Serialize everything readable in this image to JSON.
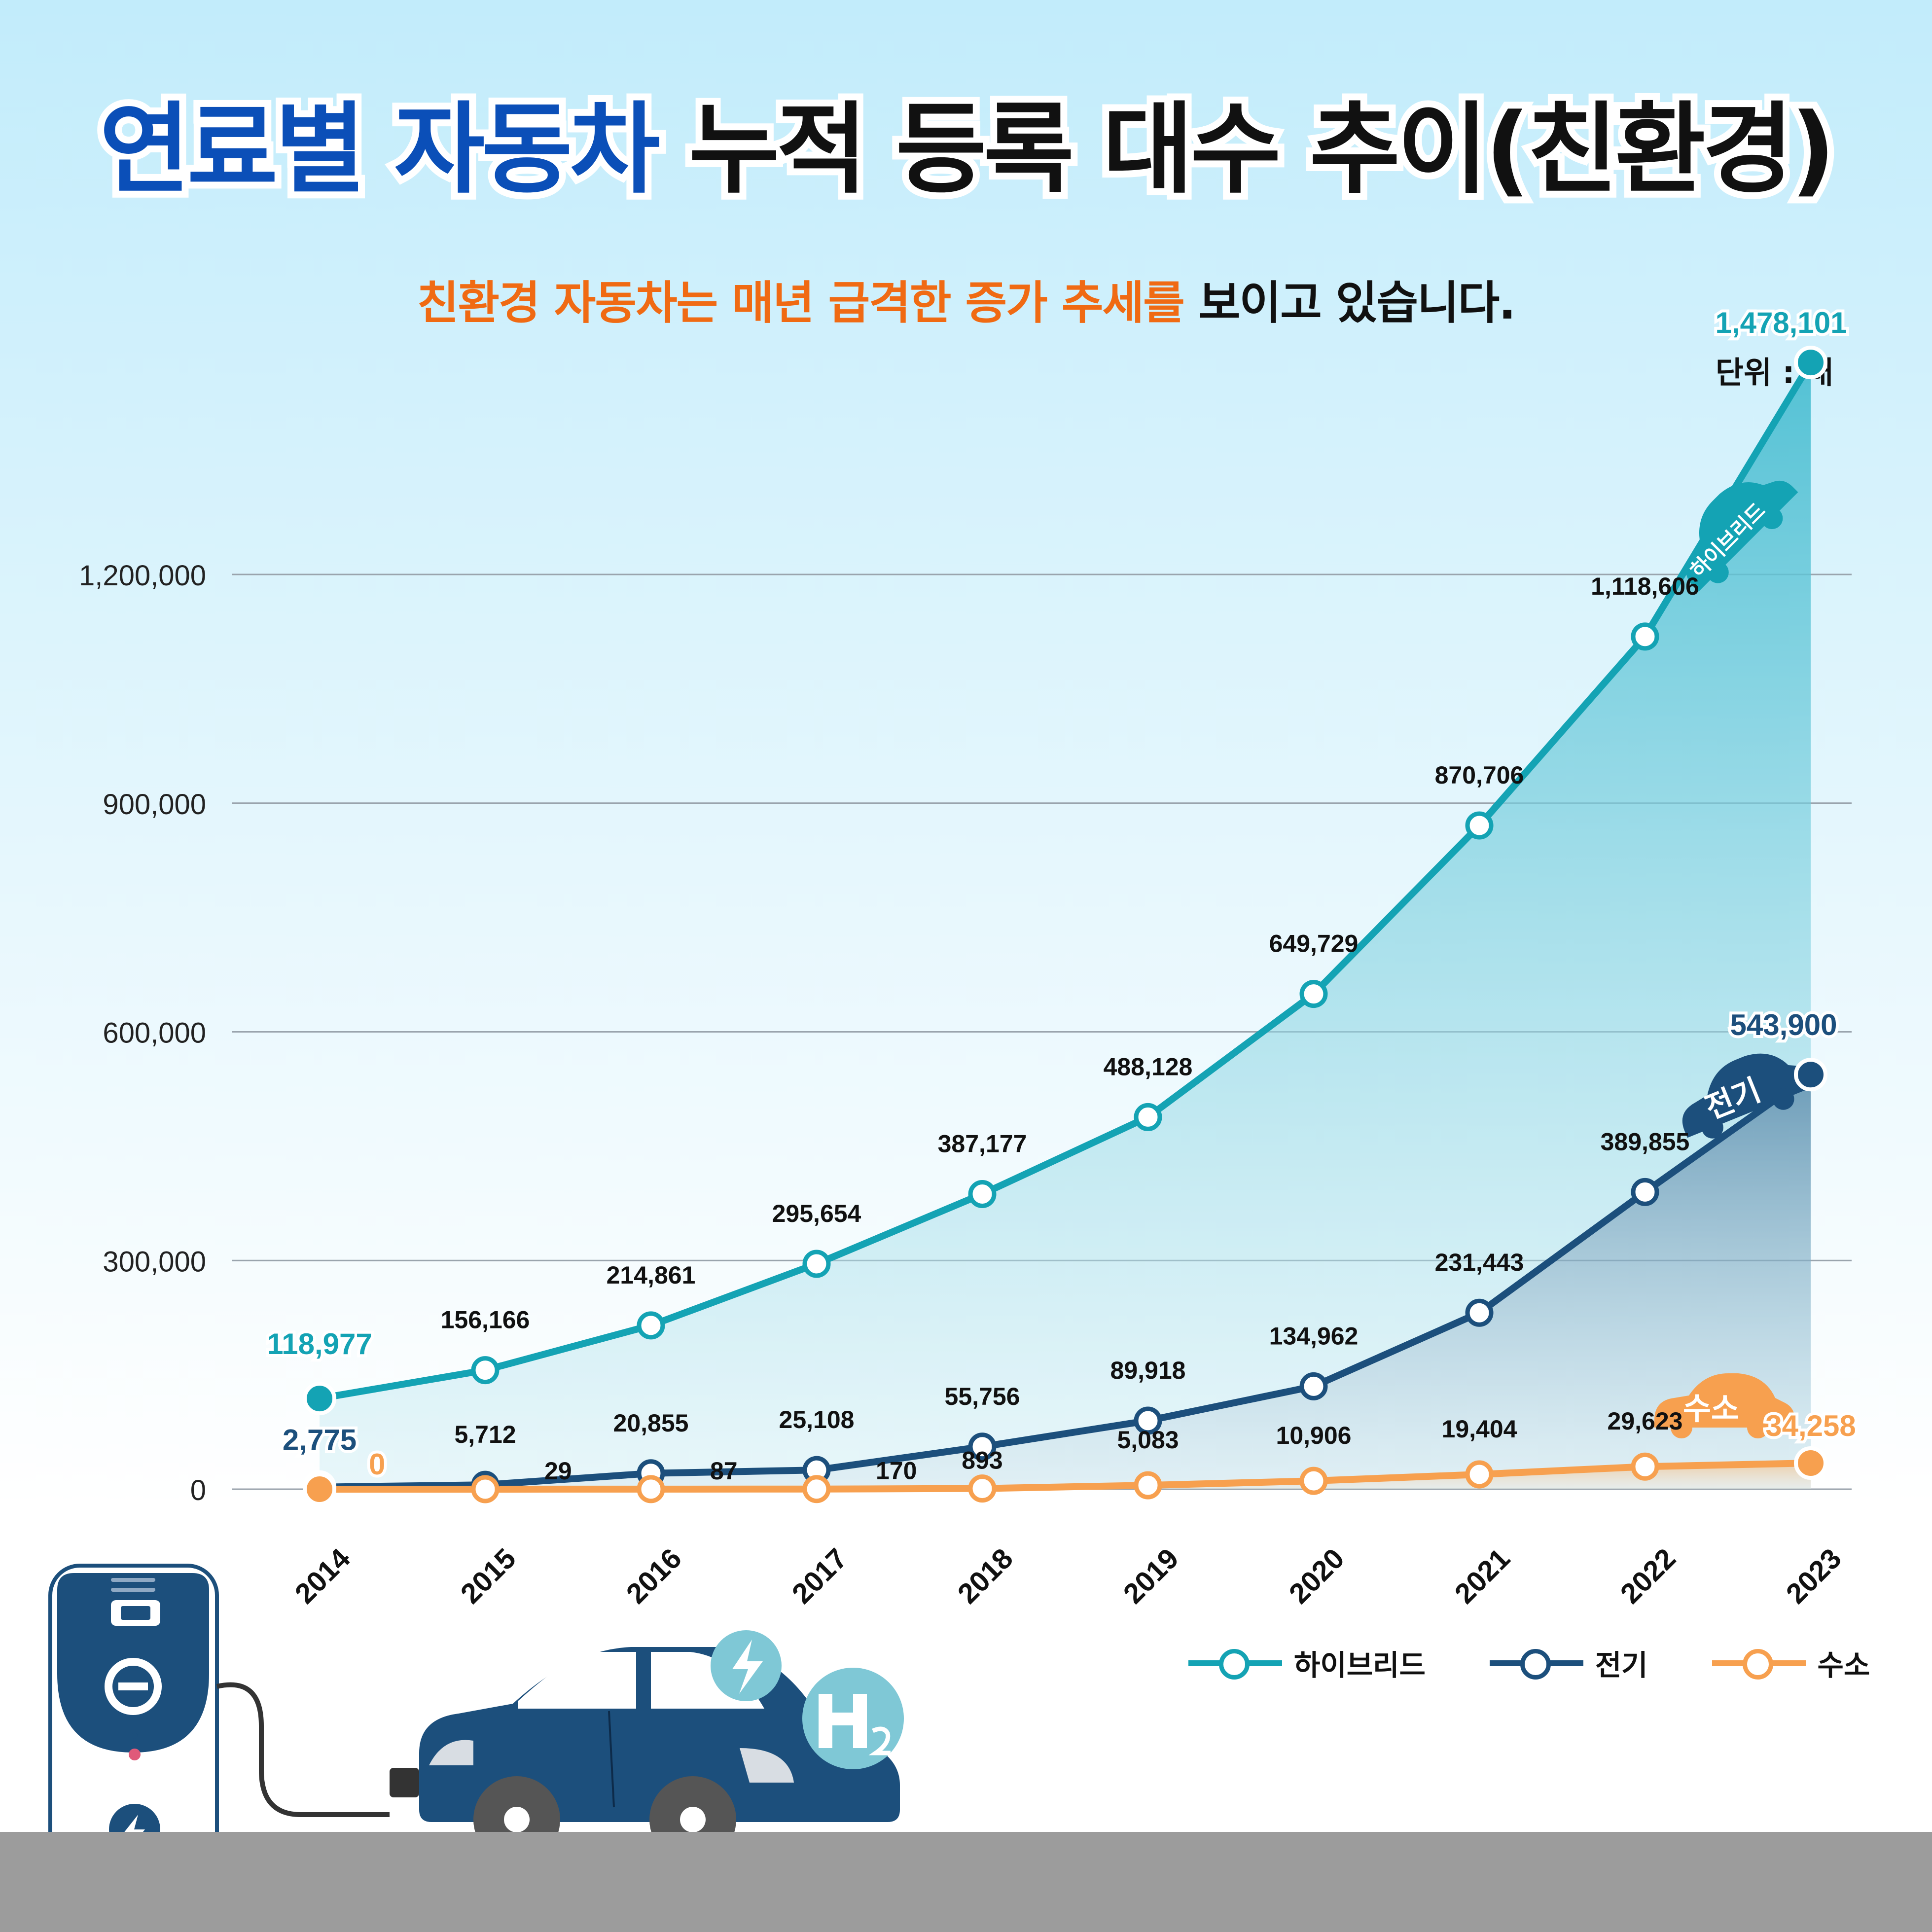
{
  "title": {
    "part_blue": "연료별 자동차",
    "part_black": "누적 등록 대수 추이(친환경)"
  },
  "subtitle": {
    "part_orange": "친환경 자동차는 매년 급격한 증가 추세를",
    "part_black": "보이고 있습니다."
  },
  "unit_label": "단위 : 대",
  "colors": {
    "hybrid": "#14a3b4",
    "electric": "#1c4f7c",
    "hydrogen": "#f7a04f",
    "title_blue": "#0b4fb8",
    "highlight_orange": "#f06a13",
    "ground": "#9c9c9c"
  },
  "chart_data": {
    "type": "line",
    "categories": [
      "2014",
      "2015",
      "2016",
      "2017",
      "2018",
      "2019",
      "2020",
      "2021",
      "2022",
      "2023"
    ],
    "ylim": [
      0,
      1300000
    ],
    "yticks": [
      0,
      300000,
      600000,
      900000,
      1200000
    ],
    "ytick_labels": [
      "0",
      "300,000",
      "600,000",
      "900,000",
      "1,200,000"
    ],
    "grid": true,
    "legend_position": "bottom-right",
    "series": [
      {
        "key": "hybrid",
        "name": "하이브리드",
        "color": "#14a3b4",
        "values": [
          118977,
          156166,
          214861,
          295654,
          387177,
          488128,
          649729,
          870706,
          1118606,
          1478101
        ],
        "labels": [
          "118,977",
          "156,166",
          "214,861",
          "295,654",
          "387,177",
          "488,128",
          "649,729",
          "870,706",
          "1,118,606",
          "1,478,101"
        ]
      },
      {
        "key": "electric",
        "name": "전기",
        "color": "#1c4f7c",
        "values": [
          2775,
          5712,
          20855,
          25108,
          55756,
          89918,
          134962,
          231443,
          389855,
          543900
        ],
        "labels": [
          "2,775",
          "5,712",
          "20,855",
          "25,108",
          "55,756",
          "89,918",
          "134,962",
          "231,443",
          "389,855",
          "543,900"
        ]
      },
      {
        "key": "hydrogen",
        "name": "수소",
        "color": "#f7a04f",
        "values": [
          0,
          29,
          87,
          170,
          893,
          5083,
          10906,
          19404,
          29623,
          34258
        ],
        "labels": [
          "0",
          "29",
          "87",
          "170",
          "893",
          "5,083",
          "10,906",
          "19,404",
          "29,623",
          "34,258"
        ]
      }
    ],
    "car_tags": {
      "hybrid": "하이브리드",
      "electric": "전기",
      "hydrogen": "수소"
    }
  },
  "legend": [
    {
      "label": "하이브리드",
      "color": "#14a3b4"
    },
    {
      "label": "전기",
      "color": "#1c4f7c"
    },
    {
      "label": "수소",
      "color": "#f7a04f"
    }
  ]
}
